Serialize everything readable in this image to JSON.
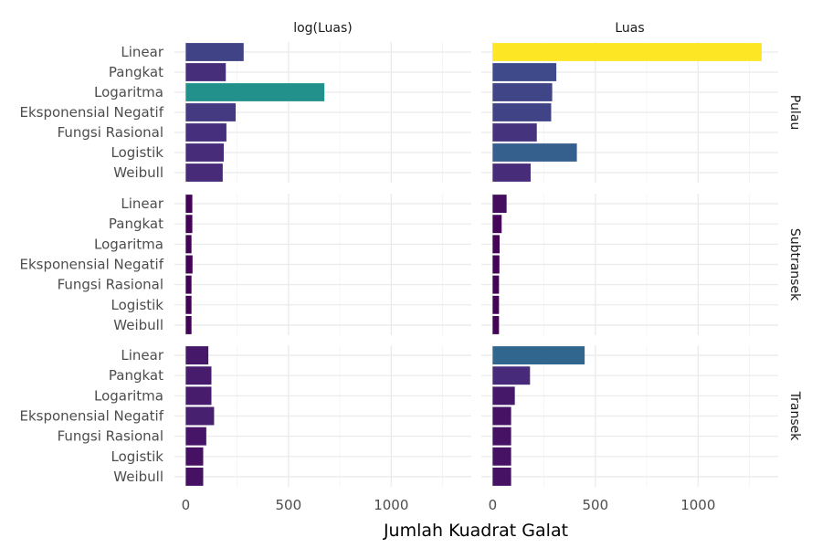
{
  "chart_data": {
    "type": "bar",
    "orientation": "horizontal",
    "xlabel": "Jumlah Kuadrat Galat",
    "ylabel": "",
    "xlim": [
      0,
      1300
    ],
    "x_ticks": [
      "0",
      "500",
      "1000"
    ],
    "x_tick_values": [
      0,
      500,
      1000
    ],
    "categories": [
      "Linear",
      "Pangkat",
      "Logaritma",
      "Eksponensial Negatif",
      "Fungsi Rasional",
      "Logistik",
      "Weibull"
    ],
    "column_facets": [
      "log(Luas)",
      "Luas"
    ],
    "row_facets": [
      "Pulau",
      "Subtransek",
      "Transek"
    ],
    "grid": true,
    "legend": "none",
    "colorscale": "viridis",
    "color_range": [
      25,
      1310
    ],
    "panels": [
      {
        "row": "Pulau",
        "column": "log(Luas)",
        "values": [
          282,
          195,
          675,
          243,
          198,
          185,
          180
        ]
      },
      {
        "row": "Pulau",
        "column": "Luas",
        "values": [
          1310,
          310,
          290,
          285,
          215,
          410,
          185
        ]
      },
      {
        "row": "Subtransek",
        "column": "log(Luas)",
        "values": [
          32,
          32,
          28,
          33,
          28,
          28,
          28
        ]
      },
      {
        "row": "Subtransek",
        "column": "Luas",
        "values": [
          68,
          44,
          34,
          33,
          31,
          31,
          31
        ]
      },
      {
        "row": "Transek",
        "column": "log(Luas)",
        "values": [
          110,
          125,
          125,
          138,
          100,
          85,
          85
        ]
      },
      {
        "row": "Transek",
        "column": "Luas",
        "values": [
          448,
          182,
          108,
          90,
          90,
          90,
          90
        ]
      }
    ]
  }
}
